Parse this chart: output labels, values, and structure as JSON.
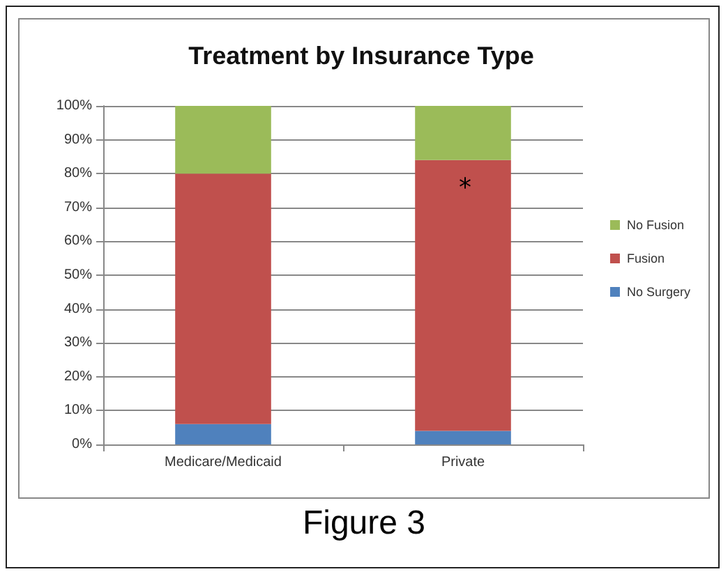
{
  "chart_data": {
    "type": "bar",
    "title": "Treatment by Insurance Type",
    "categories": [
      "Medicare/Medicaid",
      "Private"
    ],
    "stacked": true,
    "series": [
      {
        "name": "No Surgery",
        "color": "#4f81bd",
        "values": [
          6,
          4
        ]
      },
      {
        "name": "Fusion",
        "color": "#c0504d",
        "values": [
          74,
          80
        ]
      },
      {
        "name": "No Fusion",
        "color": "#9bbb59",
        "values": [
          20,
          16
        ]
      }
    ],
    "ylim": [
      0,
      100
    ],
    "yticks": [
      {
        "value": 0,
        "label": "0%"
      },
      {
        "value": 10,
        "label": "10%"
      },
      {
        "value": 20,
        "label": "20%"
      },
      {
        "value": 30,
        "label": "30%"
      },
      {
        "value": 40,
        "label": "40%"
      },
      {
        "value": 50,
        "label": "50%"
      },
      {
        "value": 60,
        "label": "60%"
      },
      {
        "value": 70,
        "label": "70%"
      },
      {
        "value": 80,
        "label": "80%"
      },
      {
        "value": 90,
        "label": "90%"
      },
      {
        "value": 100,
        "label": "100%"
      }
    ],
    "grid": "y",
    "legend": "right",
    "annotations": [
      "*",
      "Figure 3"
    ]
  }
}
